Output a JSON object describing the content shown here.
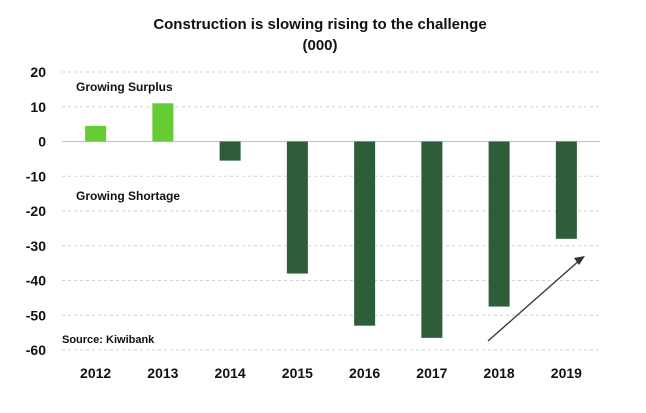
{
  "chart_data": {
    "type": "bar",
    "title": "Construction is slowing rising to the challenge",
    "subtitle": "(000)",
    "categories": [
      "2012",
      "2013",
      "2014",
      "2015",
      "2016",
      "2017",
      "2018",
      "2019"
    ],
    "values": [
      4.5,
      11,
      -5.5,
      -38,
      -53,
      -56.5,
      -47.5,
      -28
    ],
    "ylim": [
      -60,
      20
    ],
    "yticks": [
      20,
      10,
      0,
      -10,
      -20,
      -30,
      -40,
      -50,
      -60
    ],
    "xlabel": "",
    "ylabel": "",
    "grid": true,
    "colors": {
      "positive": "#66cc33",
      "negative": "#2e5d3a",
      "grid": "#d0d0d0",
      "axis": "#c8c8c8",
      "arrow": "#333333"
    },
    "annotations": {
      "surplus": "Growing Surplus",
      "shortage": "Growing Shortage",
      "source": "Source: Kiwibank"
    }
  }
}
